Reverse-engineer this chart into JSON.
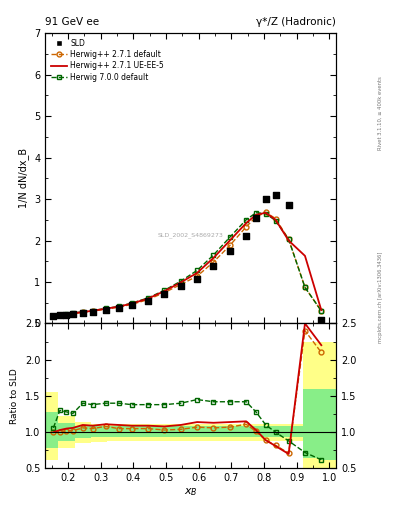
{
  "title_left": "91 GeV ee",
  "title_right": "γ*/Z (Hadronic)",
  "ylabel_main": "1/N dN/dx_B",
  "ylabel_ratio": "Ratio to SLD",
  "xlabel": "$x_B$",
  "right_label_top": "Rivet 3.1.10, ≥ 400k events",
  "right_label_bot": "mcplots.cern.ch [arXiv:1306.3436]",
  "watermark": "SLD_2002_S4869273",
  "sld_x": [
    0.155,
    0.175,
    0.195,
    0.215,
    0.245,
    0.275,
    0.315,
    0.355,
    0.395,
    0.445,
    0.495,
    0.545,
    0.595,
    0.645,
    0.695,
    0.745,
    0.775,
    0.805,
    0.835,
    0.875,
    0.975
  ],
  "sld_y": [
    0.175,
    0.195,
    0.21,
    0.23,
    0.25,
    0.28,
    0.32,
    0.37,
    0.44,
    0.55,
    0.72,
    0.9,
    1.07,
    1.38,
    1.75,
    2.1,
    2.55,
    3.0,
    3.1,
    2.85,
    0.08
  ],
  "hw271_x": [
    0.155,
    0.175,
    0.195,
    0.215,
    0.245,
    0.275,
    0.315,
    0.355,
    0.395,
    0.445,
    0.495,
    0.545,
    0.595,
    0.645,
    0.695,
    0.745,
    0.775,
    0.805,
    0.835,
    0.875,
    0.925,
    0.975
  ],
  "hw271_y": [
    0.175,
    0.195,
    0.215,
    0.235,
    0.265,
    0.295,
    0.345,
    0.39,
    0.46,
    0.575,
    0.745,
    0.94,
    1.14,
    1.48,
    1.88,
    2.33,
    2.57,
    2.68,
    2.53,
    2.03,
    0.87,
    0.3
  ],
  "hwUE_x": [
    0.155,
    0.175,
    0.195,
    0.215,
    0.245,
    0.275,
    0.315,
    0.355,
    0.395,
    0.445,
    0.495,
    0.545,
    0.595,
    0.645,
    0.695,
    0.745,
    0.775,
    0.805,
    0.835,
    0.875,
    0.925,
    0.975
  ],
  "hwUE_y": [
    0.175,
    0.2,
    0.22,
    0.245,
    0.275,
    0.305,
    0.355,
    0.405,
    0.48,
    0.6,
    0.78,
    0.99,
    1.22,
    1.58,
    2.0,
    2.42,
    2.62,
    2.67,
    2.5,
    2.0,
    1.63,
    0.32
  ],
  "hw700_x": [
    0.155,
    0.175,
    0.195,
    0.215,
    0.245,
    0.275,
    0.315,
    0.355,
    0.395,
    0.445,
    0.495,
    0.545,
    0.595,
    0.645,
    0.695,
    0.745,
    0.775,
    0.805,
    0.835,
    0.875,
    0.925,
    0.975
  ],
  "hw700_y": [
    0.185,
    0.205,
    0.225,
    0.25,
    0.28,
    0.31,
    0.36,
    0.41,
    0.49,
    0.615,
    0.8,
    1.02,
    1.28,
    1.65,
    2.08,
    2.5,
    2.67,
    2.65,
    2.48,
    2.03,
    0.87,
    0.3
  ],
  "ratio_hw271_x": [
    0.155,
    0.175,
    0.195,
    0.215,
    0.245,
    0.275,
    0.315,
    0.355,
    0.395,
    0.445,
    0.495,
    0.545,
    0.595,
    0.645,
    0.695,
    0.745,
    0.775,
    0.805,
    0.835,
    0.875,
    0.925,
    0.975
  ],
  "ratio_hw271_y": [
    1.0,
    1.0,
    1.02,
    1.02,
    1.06,
    1.05,
    1.08,
    1.05,
    1.05,
    1.05,
    1.03,
    1.04,
    1.07,
    1.06,
    1.07,
    1.11,
    1.01,
    0.89,
    0.82,
    0.71,
    2.4,
    2.1
  ],
  "ratio_hwUE_x": [
    0.155,
    0.175,
    0.195,
    0.215,
    0.245,
    0.275,
    0.315,
    0.355,
    0.395,
    0.445,
    0.495,
    0.545,
    0.595,
    0.645,
    0.695,
    0.745,
    0.775,
    0.805,
    0.835,
    0.875,
    0.925,
    0.975
  ],
  "ratio_hwUE_y": [
    1.0,
    1.03,
    1.05,
    1.06,
    1.1,
    1.09,
    1.11,
    1.1,
    1.09,
    1.09,
    1.08,
    1.1,
    1.14,
    1.13,
    1.14,
    1.15,
    1.03,
    0.89,
    0.81,
    0.7,
    2.5,
    2.2
  ],
  "ratio_hw700_x": [
    0.155,
    0.175,
    0.195,
    0.215,
    0.245,
    0.275,
    0.315,
    0.355,
    0.395,
    0.445,
    0.495,
    0.545,
    0.595,
    0.645,
    0.695,
    0.745,
    0.775,
    0.805,
    0.835,
    0.875,
    0.925,
    0.975
  ],
  "ratio_hw700_y": [
    1.06,
    1.3,
    1.28,
    1.26,
    1.4,
    1.38,
    1.4,
    1.4,
    1.38,
    1.38,
    1.38,
    1.4,
    1.45,
    1.42,
    1.42,
    1.42,
    1.28,
    1.1,
    1.0,
    0.88,
    0.72,
    0.62
  ],
  "band_x_edges": [
    0.13,
    0.17,
    0.22,
    0.27,
    0.32,
    0.37,
    0.42,
    0.47,
    0.52,
    0.57,
    0.62,
    0.67,
    0.72,
    0.77,
    0.82,
    0.87,
    0.92,
    0.97,
    1.02
  ],
  "band_yellow_lo": [
    0.62,
    0.78,
    0.85,
    0.87,
    0.88,
    0.88,
    0.88,
    0.88,
    0.88,
    0.88,
    0.88,
    0.88,
    0.88,
    0.88,
    0.88,
    0.88,
    0.5,
    0.48,
    0.48
  ],
  "band_yellow_hi": [
    1.55,
    1.22,
    1.14,
    1.12,
    1.12,
    1.12,
    1.12,
    1.12,
    1.12,
    1.12,
    1.12,
    1.12,
    1.12,
    1.12,
    1.12,
    1.12,
    2.25,
    2.25,
    2.25
  ],
  "band_green_lo": [
    0.78,
    0.88,
    0.92,
    0.93,
    0.93,
    0.93,
    0.93,
    0.93,
    0.93,
    0.93,
    0.93,
    0.93,
    0.93,
    0.93,
    0.93,
    0.93,
    0.64,
    0.62,
    0.62
  ],
  "band_green_hi": [
    1.28,
    1.13,
    1.09,
    1.08,
    1.08,
    1.08,
    1.08,
    1.08,
    1.08,
    1.08,
    1.08,
    1.08,
    1.08,
    1.08,
    1.08,
    1.08,
    1.6,
    1.6,
    1.6
  ],
  "color_sld": "#000000",
  "color_hw271": "#cc6600",
  "color_hwUE": "#cc0000",
  "color_hw700": "#006600",
  "color_yellow": "#ffff88",
  "color_green_light": "#88ee88",
  "ylim_main": [
    0,
    7.0
  ],
  "ylim_ratio": [
    0.5,
    2.5
  ],
  "xlim": [
    0.13,
    1.02
  ]
}
